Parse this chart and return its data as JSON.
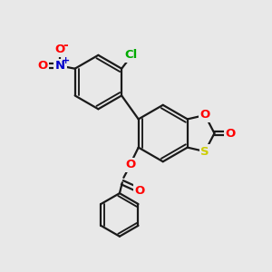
{
  "bg_color": "#e8e8e8",
  "bond_color": "#1a1a1a",
  "bond_width": 1.6,
  "atom_colors": {
    "O": "#ff0000",
    "S": "#cccc00",
    "N": "#0000cc",
    "Cl": "#00aa00"
  }
}
